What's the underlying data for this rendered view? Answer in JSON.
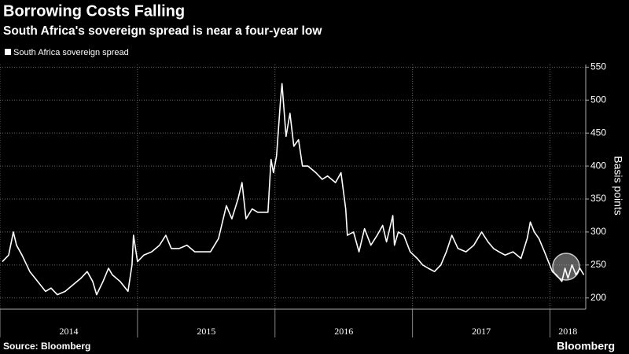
{
  "chart_data": {
    "type": "line",
    "title": "Borrowing Costs Falling",
    "subtitle": "South Africa's sovereign spread is near a four-year low",
    "y_axis_label": "Basis points",
    "source": "Source: Bloomberg",
    "brand": "Bloomberg",
    "xlim": [
      2014,
      2018.26
    ],
    "xticks": [
      {
        "value": 2014,
        "label": "2014"
      },
      {
        "value": 2015,
        "label": "2015"
      },
      {
        "value": 2016,
        "label": "2016"
      },
      {
        "value": 2017,
        "label": "2017"
      },
      {
        "value": 2018,
        "label": "2018"
      }
    ],
    "ylim": [
      183,
      554
    ],
    "yticks": [
      200,
      250,
      300,
      350,
      400,
      450,
      500,
      550
    ],
    "grid": true,
    "series": [
      {
        "name": "South Africa sovereign spread",
        "color": "#ffffff",
        "x": [
          2014.017,
          2014.063,
          2014.097,
          2014.12,
          2014.16,
          2014.217,
          2014.274,
          2014.331,
          2014.371,
          2014.417,
          2014.474,
          2014.531,
          2014.589,
          2014.634,
          2014.674,
          2014.703,
          2014.749,
          2014.789,
          2014.817,
          2014.874,
          2014.931,
          2014.96,
          2014.971,
          2015.0,
          2015.046,
          2015.103,
          2015.16,
          2015.206,
          2015.246,
          2015.303,
          2015.36,
          2015.417,
          2015.474,
          2015.531,
          2015.589,
          2015.646,
          2015.686,
          2015.731,
          2015.76,
          2015.789,
          2015.834,
          2015.874,
          2015.914,
          2015.949,
          2015.971,
          2015.989,
          2016.011,
          2016.04,
          2016.051,
          2016.08,
          2016.109,
          2016.137,
          2016.171,
          2016.2,
          2016.24,
          2016.297,
          2016.343,
          2016.383,
          2016.44,
          2016.48,
          2016.514,
          2016.526,
          2016.571,
          2016.611,
          2016.651,
          2016.697,
          2016.743,
          2016.783,
          2016.811,
          2016.857,
          2016.869,
          2016.897,
          2016.937,
          2016.983,
          2017.034,
          2017.074,
          2017.114,
          2017.16,
          2017.206,
          2017.246,
          2017.286,
          2017.331,
          2017.389,
          2017.446,
          2017.503,
          2017.549,
          2017.589,
          2017.629,
          2017.674,
          2017.731,
          2017.789,
          2017.834,
          2017.857,
          2017.886,
          2017.92,
          2017.96,
          2018.017,
          2018.046,
          2018.086,
          2018.109,
          2018.131,
          2018.16,
          2018.189,
          2018.217,
          2018.246
        ],
        "values": [
          255,
          265,
          300,
          280,
          265,
          240,
          225,
          210,
          215,
          205,
          210,
          220,
          230,
          240,
          225,
          205,
          225,
          245,
          235,
          225,
          210,
          250,
          295,
          255,
          265,
          270,
          280,
          295,
          275,
          275,
          280,
          270,
          270,
          270,
          290,
          340,
          320,
          350,
          375,
          320,
          335,
          330,
          330,
          330,
          410,
          390,
          415,
          500,
          525,
          445,
          480,
          430,
          440,
          400,
          400,
          390,
          380,
          385,
          375,
          390,
          335,
          295,
          300,
          270,
          305,
          280,
          295,
          310,
          285,
          325,
          280,
          300,
          295,
          270,
          260,
          250,
          245,
          240,
          250,
          270,
          295,
          275,
          270,
          280,
          300,
          285,
          275,
          270,
          265,
          270,
          260,
          290,
          315,
          300,
          290,
          270,
          240,
          235,
          225,
          245,
          230,
          250,
          235,
          245,
          235
        ]
      }
    ]
  }
}
